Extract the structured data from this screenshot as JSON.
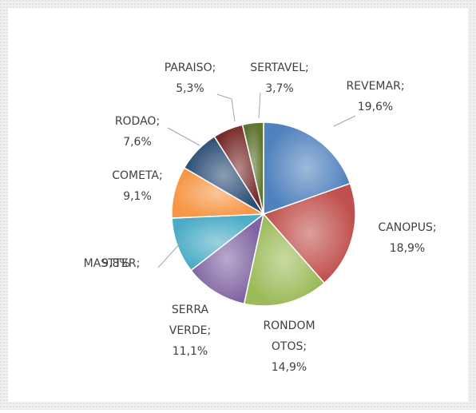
{
  "chart_data": {
    "type": "pie",
    "categories": [
      "REVEMAR;",
      "CANOPUS;",
      "RONDOM OTOS;",
      "SERRA VERDE;",
      "MASTTER;",
      "COMETA;",
      "RODAO;",
      "PARAISO;",
      "SERTAVEL;"
    ],
    "values": [
      19.6,
      18.9,
      14.9,
      11.1,
      9.8,
      9.1,
      7.6,
      5.3,
      3.7
    ],
    "value_labels": [
      "19,6%",
      "18,9%",
      "14,9%",
      "11,1%",
      "9,8%",
      "9,1%",
      "7,6%",
      "5,3%",
      "3,7%"
    ],
    "colors": [
      "#4f81bd",
      "#c0504d",
      "#9bbb59",
      "#8064a2",
      "#4bacc6",
      "#f79646",
      "#2c4d75",
      "#772c2a",
      "#5f7530"
    ]
  }
}
